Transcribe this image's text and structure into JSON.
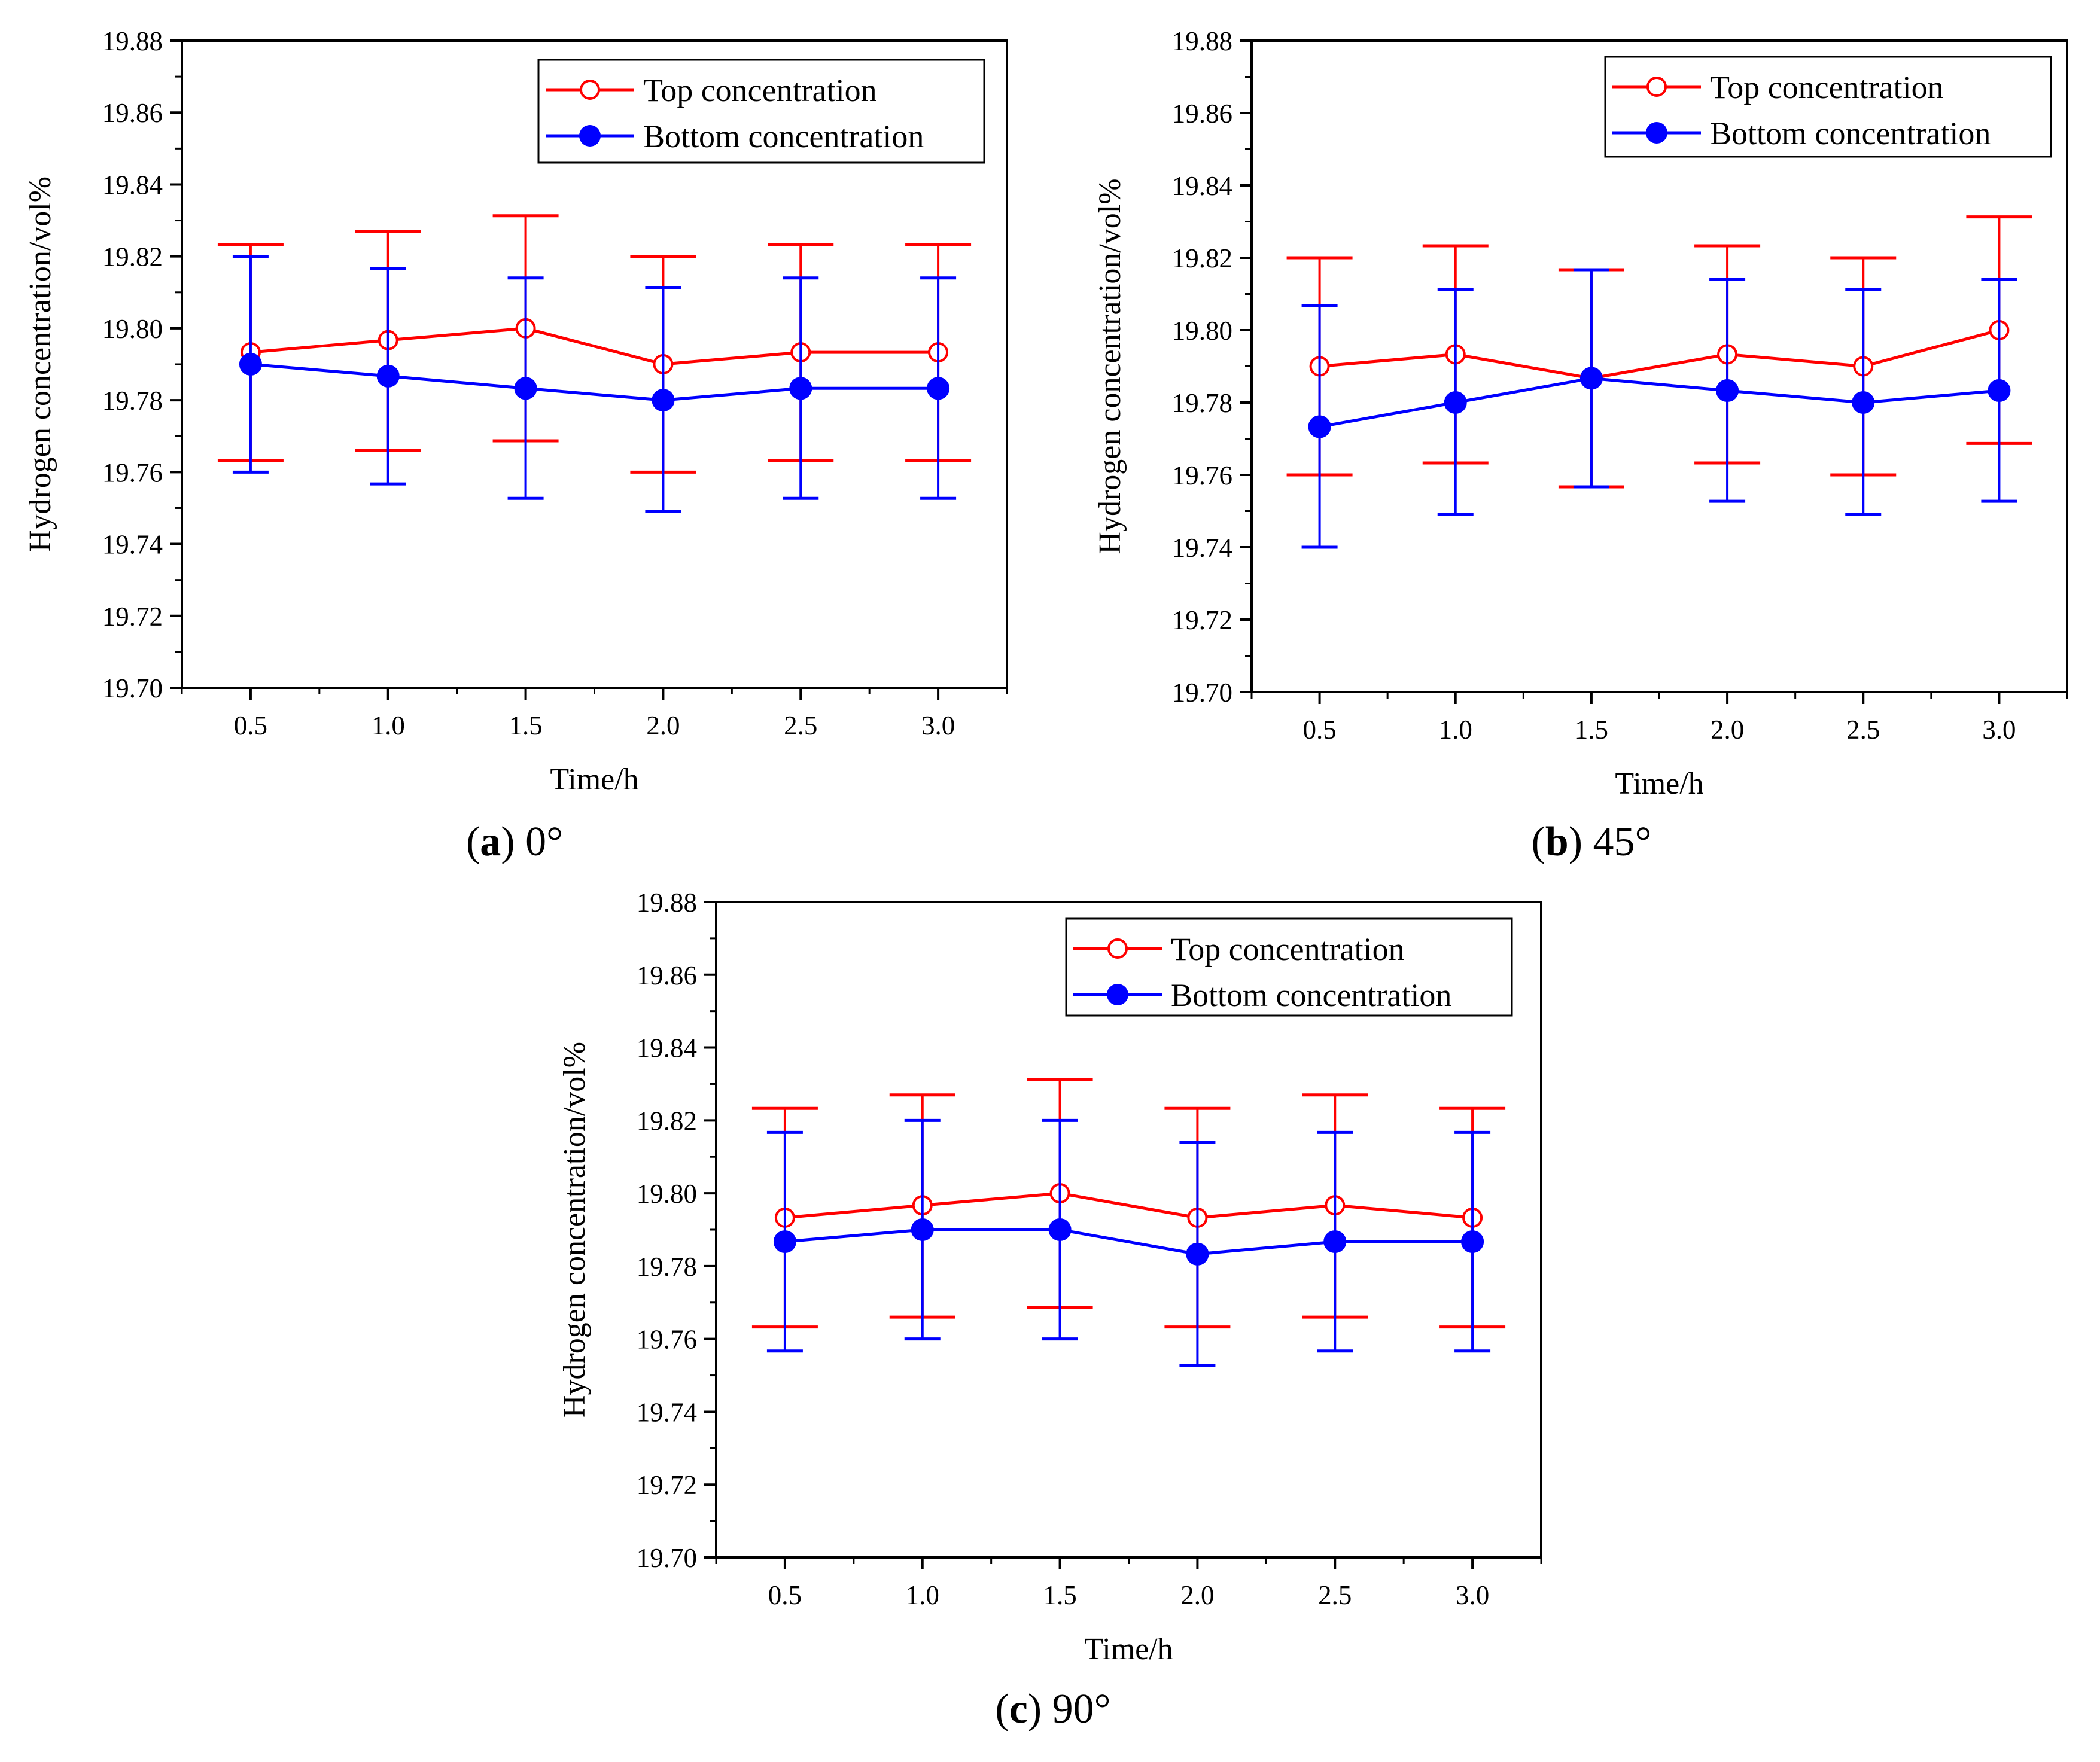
{
  "colors": {
    "top": "#ff0000",
    "bottom": "#0000ff",
    "axis": "#000000"
  },
  "chart_data": [
    {
      "type": "line",
      "id": "a",
      "caption": {
        "letter": "a",
        "text": "0°"
      },
      "xlabel": "Time/h",
      "ylabel": "Hydrogen concentration/vol%",
      "xticks": [
        "0.5",
        "1.0",
        "1.5",
        "2.0",
        "2.5",
        "3.0"
      ],
      "yticks": [
        "19.70",
        "19.72",
        "19.74",
        "19.76",
        "19.78",
        "19.80",
        "19.82",
        "19.84",
        "19.86",
        "19.88"
      ],
      "ylim": [
        19.7,
        19.88
      ],
      "xlim": [
        0.25,
        3.25
      ],
      "x": [
        0.5,
        1.0,
        1.5,
        2.0,
        2.5,
        3.0
      ],
      "legend": [
        "Top concentration",
        "Bottom concentration"
      ],
      "series": [
        {
          "name": "Top concentration",
          "marker": "open-circle",
          "values": [
            19.7933,
            19.7967,
            19.8,
            19.79,
            19.7933,
            19.7933
          ],
          "err_low": [
            19.7633,
            19.766,
            19.7687,
            19.76,
            19.7633,
            19.7633
          ],
          "err_high": [
            19.8233,
            19.827,
            19.8313,
            19.82,
            19.8233,
            19.8233
          ]
        },
        {
          "name": "Bottom concentration",
          "marker": "filled-circle",
          "values": [
            19.79,
            19.7867,
            19.7833,
            19.78,
            19.7833,
            19.7833
          ],
          "err_low": [
            19.76,
            19.7567,
            19.7527,
            19.749,
            19.7527,
            19.7527
          ],
          "err_high": [
            19.82,
            19.8167,
            19.814,
            19.8113,
            19.814,
            19.814
          ]
        }
      ]
    },
    {
      "type": "line",
      "id": "b",
      "caption": {
        "letter": "b",
        "text": "45°"
      },
      "xlabel": "Time/h",
      "ylabel": "Hydrogen concentration/vol%",
      "xticks": [
        "0.5",
        "1.0",
        "1.5",
        "2.0",
        "2.5",
        "3.0"
      ],
      "yticks": [
        "19.70",
        "19.72",
        "19.74",
        "19.76",
        "19.78",
        "19.80",
        "19.82",
        "19.84",
        "19.86",
        "19.88"
      ],
      "ylim": [
        19.7,
        19.88
      ],
      "xlim": [
        0.25,
        3.25
      ],
      "x": [
        0.5,
        1.0,
        1.5,
        2.0,
        2.5,
        3.0
      ],
      "legend": [
        "Top concentration",
        "Bottom concentration"
      ],
      "series": [
        {
          "name": "Top concentration",
          "marker": "open-circle",
          "values": [
            19.79,
            19.7933,
            19.7867,
            19.7933,
            19.79,
            19.8
          ],
          "err_low": [
            19.76,
            19.7633,
            19.7567,
            19.7633,
            19.76,
            19.7687
          ],
          "err_high": [
            19.82,
            19.8233,
            19.8167,
            19.8233,
            19.82,
            19.8313
          ]
        },
        {
          "name": "Bottom concentration",
          "marker": "filled-circle",
          "values": [
            19.7733,
            19.78,
            19.7867,
            19.7833,
            19.78,
            19.7833
          ],
          "err_low": [
            19.74,
            19.749,
            19.7567,
            19.7527,
            19.749,
            19.7527
          ],
          "err_high": [
            19.8067,
            19.8113,
            19.8167,
            19.814,
            19.8113,
            19.814
          ]
        }
      ]
    },
    {
      "type": "line",
      "id": "c",
      "caption": {
        "letter": "c",
        "text": "90°"
      },
      "xlabel": "Time/h",
      "ylabel": "Hydrogen concentration/vol%",
      "xticks": [
        "0.5",
        "1.0",
        "1.5",
        "2.0",
        "2.5",
        "3.0"
      ],
      "yticks": [
        "19.70",
        "19.72",
        "19.74",
        "19.76",
        "19.78",
        "19.80",
        "19.82",
        "19.84",
        "19.86",
        "19.88"
      ],
      "ylim": [
        19.7,
        19.88
      ],
      "xlim": [
        0.25,
        3.25
      ],
      "x": [
        0.5,
        1.0,
        1.5,
        2.0,
        2.5,
        3.0
      ],
      "legend": [
        "Top concentration",
        "Bottom concentration"
      ],
      "series": [
        {
          "name": "Top concentration",
          "marker": "open-circle",
          "values": [
            19.7933,
            19.7967,
            19.8,
            19.7933,
            19.7967,
            19.7933
          ],
          "err_low": [
            19.7633,
            19.766,
            19.7687,
            19.7633,
            19.766,
            19.7633
          ],
          "err_high": [
            19.8233,
            19.827,
            19.8313,
            19.8233,
            19.827,
            19.8233
          ]
        },
        {
          "name": "Bottom concentration",
          "marker": "filled-circle",
          "values": [
            19.7867,
            19.79,
            19.79,
            19.7833,
            19.7867,
            19.7867
          ],
          "err_low": [
            19.7567,
            19.76,
            19.76,
            19.7527,
            19.7567,
            19.7567
          ],
          "err_high": [
            19.8167,
            19.82,
            19.82,
            19.814,
            19.8167,
            19.8167
          ]
        }
      ]
    }
  ]
}
